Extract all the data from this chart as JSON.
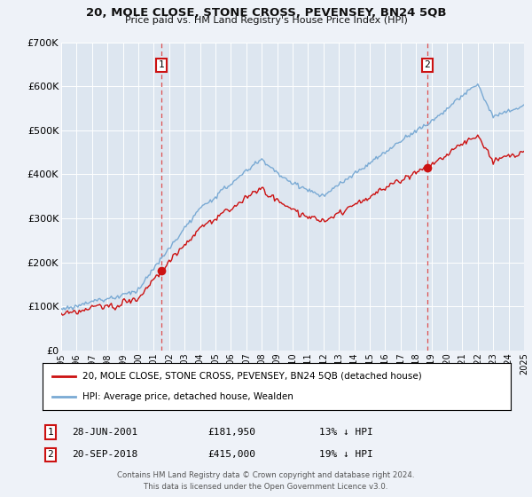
{
  "title": "20, MOLE CLOSE, STONE CROSS, PEVENSEY, BN24 5QB",
  "subtitle": "Price paid vs. HM Land Registry's House Price Index (HPI)",
  "background_color": "#eef2f8",
  "plot_bg_color": "#dde6f0",
  "legend_line1": "20, MOLE CLOSE, STONE CROSS, PEVENSEY, BN24 5QB (detached house)",
  "legend_line2": "HPI: Average price, detached house, Wealden",
  "annotation1_label": "1",
  "annotation1_date": "28-JUN-2001",
  "annotation1_price": "£181,950",
  "annotation1_hpi": "13% ↓ HPI",
  "annotation2_label": "2",
  "annotation2_date": "20-SEP-2018",
  "annotation2_price": "£415,000",
  "annotation2_hpi": "19% ↓ HPI",
  "footer": "Contains HM Land Registry data © Crown copyright and database right 2024.\nThis data is licensed under the Open Government Licence v3.0.",
  "sale1_x": 2001.5,
  "sale1_y": 181950,
  "sale2_x": 2018.72,
  "sale2_y": 415000,
  "sale1_hpi_y": 209138,
  "sale2_hpi_y": 512346,
  "xmin": 1995,
  "xmax": 2025,
  "ymin": 0,
  "ymax": 700000,
  "yticks": [
    0,
    100000,
    200000,
    300000,
    400000,
    500000,
    600000,
    700000
  ],
  "ytick_labels": [
    "£0",
    "£100K",
    "£200K",
    "£300K",
    "£400K",
    "£500K",
    "£600K",
    "£700K"
  ],
  "hpi_color": "#7aaad4",
  "price_color": "#cc1111",
  "vline_color": "#dd3333",
  "annotation_box_color": "#cc1111"
}
